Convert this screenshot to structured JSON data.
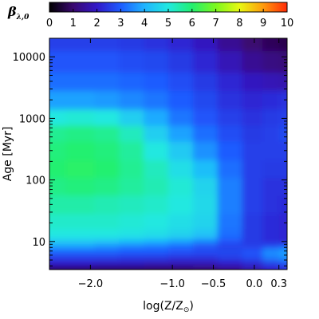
{
  "chart_data": {
    "type": "heatmap",
    "colorbar": {
      "title": "β",
      "title_subscript": "λ,0",
      "ticks": [
        "0",
        "1",
        "2",
        "3",
        "4",
        "5",
        "6",
        "7",
        "8",
        "9",
        "10"
      ],
      "range": [
        0,
        10
      ]
    },
    "x_axis": {
      "title_prefix": "log(Z/Z",
      "title_symbol": "⊙",
      "title_suffix": ")",
      "range": [
        -2.5,
        0.4
      ],
      "ticks": [
        {
          "value": -2.0,
          "label": "−2.0"
        },
        {
          "value": -1.0,
          "label": "−1.0"
        },
        {
          "value": -0.5,
          "label": "−0.5"
        },
        {
          "value": 0.0,
          "label": "0.0"
        },
        {
          "value": 0.3,
          "label": "0.3"
        }
      ]
    },
    "y_axis": {
      "title": "Age [Myr]",
      "scale": "log",
      "range": [
        3.5,
        20000
      ],
      "ticks": [
        {
          "value": 10,
          "label": "10"
        },
        {
          "value": 100,
          "label": "100"
        },
        {
          "value": 1000,
          "label": "1000"
        },
        {
          "value": 10000,
          "label": "10000"
        }
      ]
    },
    "colormap": [
      "#000000",
      "#3a0870",
      "#3218c8",
      "#1e5cff",
      "#1fb4ff",
      "#21e8e0",
      "#23f070",
      "#7cf81e",
      "#e8f812",
      "#ff9a0c",
      "#ff2a08"
    ],
    "grid_x": [
      -2.5,
      -2.1,
      -1.8,
      -1.5,
      -1.2,
      -0.9,
      -0.6,
      -0.3,
      0.0,
      0.2,
      0.4
    ],
    "grid_y": [
      3.5,
      4.5,
      5.5,
      7,
      8.5,
      10,
      13,
      20,
      40,
      80,
      150,
      300,
      600,
      1000,
      2000,
      4000,
      8000,
      20000
    ],
    "values": [
      [
        0.8,
        0.8,
        0.8,
        0.8,
        0.8,
        0.8,
        0.9,
        1.2,
        1.6,
        2.0,
        2.2
      ],
      [
        2.0,
        2.0,
        1.9,
        1.9,
        1.8,
        1.8,
        1.8,
        2.0,
        2.2,
        2.6,
        2.8
      ],
      [
        2.6,
        2.6,
        2.6,
        2.5,
        2.5,
        2.4,
        2.4,
        2.6,
        2.8,
        3.4,
        3.6
      ],
      [
        3.1,
        3.1,
        3.1,
        3.0,
        3.0,
        2.9,
        2.8,
        2.7,
        2.9,
        3.6,
        3.8
      ],
      [
        3.8,
        3.8,
        3.6,
        3.4,
        3.3,
        3.1,
        2.8,
        2.6,
        2.6,
        2.8,
        3.0
      ],
      [
        4.4,
        4.4,
        4.3,
        4.2,
        4.0,
        3.8,
        3.5,
        2.9,
        2.5,
        2.3,
        2.2
      ],
      [
        5.0,
        5.0,
        5.0,
        4.9,
        4.8,
        4.6,
        4.3,
        3.2,
        2.5,
        2.3,
        2.2
      ],
      [
        5.2,
        5.2,
        5.2,
        5.1,
        5.0,
        4.8,
        4.6,
        3.3,
        2.5,
        2.3,
        2.2
      ],
      [
        5.5,
        5.5,
        5.4,
        5.3,
        5.2,
        5.0,
        4.7,
        3.4,
        2.6,
        2.4,
        2.3
      ],
      [
        5.8,
        5.9,
        5.8,
        5.6,
        5.4,
        5.1,
        4.6,
        3.4,
        2.6,
        2.4,
        2.4
      ],
      [
        6.0,
        6.1,
        6.0,
        5.7,
        5.3,
        4.8,
        4.2,
        3.2,
        2.6,
        2.5,
        2.5
      ],
      [
        5.9,
        6.0,
        5.9,
        5.6,
        5.0,
        4.4,
        3.6,
        3.0,
        2.6,
        2.6,
        2.6
      ],
      [
        5.7,
        5.8,
        5.7,
        5.3,
        4.5,
        3.8,
        3.2,
        2.8,
        2.5,
        2.6,
        2.7
      ],
      [
        5.0,
        5.1,
        5.0,
        4.5,
        3.9,
        3.3,
        2.9,
        2.6,
        2.4,
        2.5,
        2.6
      ],
      [
        3.8,
        3.8,
        3.7,
        3.5,
        3.3,
        3.0,
        2.7,
        2.4,
        2.2,
        2.3,
        2.4
      ],
      [
        3.2,
        3.2,
        3.2,
        3.1,
        3.0,
        2.8,
        2.5,
        2.2,
        1.9,
        1.8,
        1.7
      ],
      [
        2.9,
        2.9,
        2.9,
        2.8,
        2.7,
        2.5,
        2.2,
        1.8,
        1.4,
        1.2,
        1.1
      ],
      [
        2.6,
        2.6,
        2.6,
        2.5,
        2.4,
        2.2,
        1.9,
        1.4,
        1.0,
        0.8,
        0.7
      ]
    ]
  }
}
